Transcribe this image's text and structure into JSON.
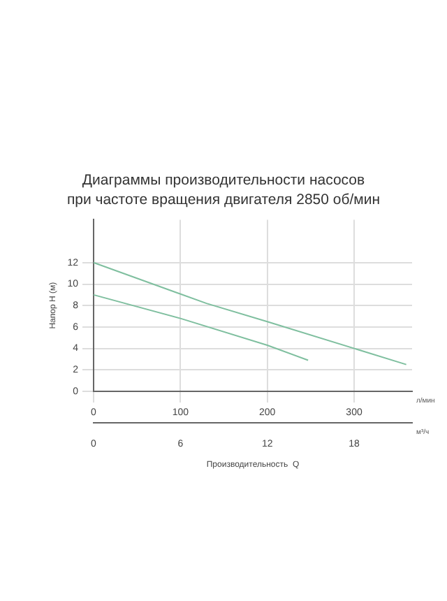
{
  "chart_data": {
    "type": "line",
    "title": "Диаграммы производительности насосов\nпри частоте вращения двигателя 2850 об/мин",
    "xlabel": "Производительность  Q",
    "ylabel": "Напор H (м)",
    "series": [
      {
        "color": "#7fbf9f",
        "x": [
          0,
          130,
          200,
          360
        ],
        "values": [
          12,
          8.2,
          6.5,
          2.5
        ]
      },
      {
        "color": "#7fbf9f",
        "x": [
          0,
          100,
          200,
          247
        ],
        "values": [
          9,
          6.8,
          4.3,
          2.9
        ]
      }
    ],
    "xlim": [
      0,
      366.7
    ],
    "xticks": [
      0,
      100,
      200,
      300
    ],
    "ylim": [
      0,
      16
    ],
    "yticks": [
      0,
      2,
      4,
      6,
      8,
      10,
      12
    ],
    "x2lim": [
      0,
      22
    ],
    "x2ticks": [
      0,
      6,
      12,
      18
    ],
    "annotations": [
      "л/мин",
      "м³/ч"
    ],
    "grid": true,
    "legend": false,
    "marker": "none",
    "line_style": "solid"
  }
}
